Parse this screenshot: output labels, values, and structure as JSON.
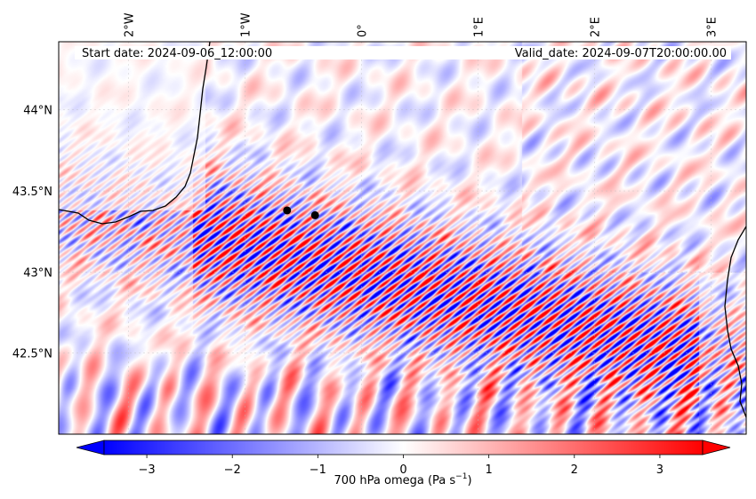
{
  "map": {
    "start_label": "Start date: 2024-09-06_12:00:00",
    "valid_label": "Valid_date: 2024-09-07T20:00:00.00",
    "lon_ticks": [
      {
        "lon": -2,
        "label": "2°W"
      },
      {
        "lon": -1,
        "label": "1°W"
      },
      {
        "lon": 0,
        "label": "0°"
      },
      {
        "lon": 1,
        "label": "1°E"
      },
      {
        "lon": 2,
        "label": "2°E"
      },
      {
        "lon": 3,
        "label": "3°E"
      }
    ],
    "lat_ticks": [
      {
        "lat": 44.0,
        "label": "44°N"
      },
      {
        "lat": 43.5,
        "label": "43.5°N"
      },
      {
        "lat": 43.0,
        "label": "43°N"
      },
      {
        "lat": 42.5,
        "label": "42.5°N"
      }
    ],
    "extent": {
      "lon_min": -2.6,
      "lon_max": 3.3,
      "lat_min": 42.0,
      "lat_max": 44.42
    },
    "markers": [
      {
        "lon": -0.64,
        "lat": 43.38
      },
      {
        "lon": -0.4,
        "lat": 43.35
      }
    ],
    "colors": {
      "negative": "#0000ff",
      "neutral": "#ffffff",
      "positive": "#ff0000",
      "marker": "#000000",
      "coastline": "#000000"
    }
  },
  "colorbar": {
    "label": "700 hPa omega (Pa s",
    "label_exp": "−1",
    "label_close": ")",
    "min": -3.5,
    "max": 3.5,
    "ticks": [
      {
        "value": -3,
        "label": "−3"
      },
      {
        "value": -2,
        "label": "−2"
      },
      {
        "value": -1,
        "label": "−1"
      },
      {
        "value": 0,
        "label": "0"
      },
      {
        "value": 1,
        "label": "1"
      },
      {
        "value": 2,
        "label": "2"
      },
      {
        "value": 3,
        "label": "3"
      }
    ],
    "extend": "both"
  }
}
